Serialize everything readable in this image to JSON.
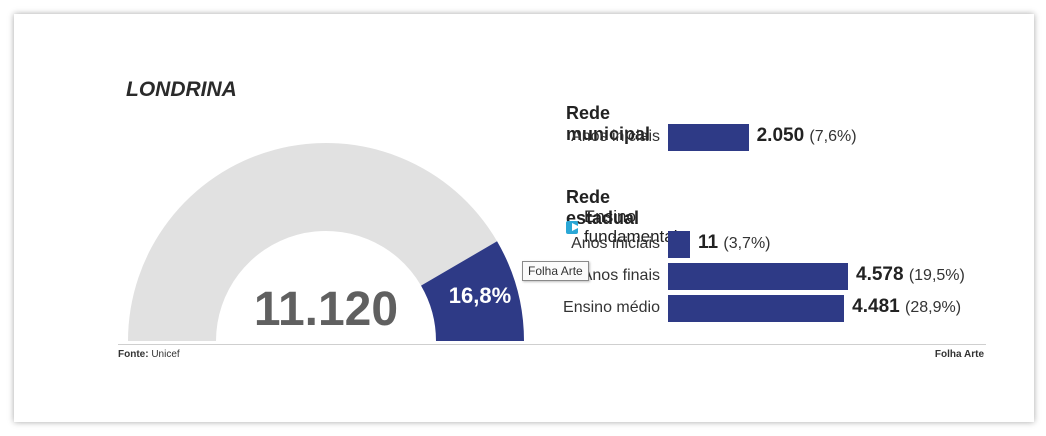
{
  "chart_data": [
    {
      "type": "pie",
      "title": "LONDRINA",
      "total_label": "11.120",
      "total": 11120,
      "highlight_share_percent": 16.8,
      "highlight_label": "16,8%",
      "colors": {
        "highlight": "#2e3a86",
        "rest": "#e1e1e1"
      }
    },
    {
      "type": "bar",
      "orientation": "horizontal",
      "groups": [
        {
          "name": "Rede municipal",
          "subgroup": "",
          "categories": [
            "Anos iniciais"
          ],
          "values": [
            2050
          ],
          "value_labels": [
            "2.050"
          ],
          "percent_labels": [
            "(7,6%)"
          ]
        },
        {
          "name": "Rede estadual",
          "subgroup": "Ensino fundamental",
          "categories": [
            "Anos iniciais",
            "Anos finais",
            "Ensino médio"
          ],
          "values": [
            11,
            4578,
            4481
          ],
          "value_labels": [
            "11",
            "4.578",
            "4.481"
          ],
          "percent_labels": [
            "(3,7%)",
            "(19,5%)",
            "(28,9%)"
          ]
        }
      ],
      "bar_color": "#2e3a86",
      "subgroup_icon": "play-icon",
      "subgroup_icon_color": "#2aa7d6"
    }
  ],
  "footer": {
    "source_label": "Fonte:",
    "source_value": "Unicef",
    "credit": "Folha Arte"
  },
  "tooltip": "Folha Arte"
}
